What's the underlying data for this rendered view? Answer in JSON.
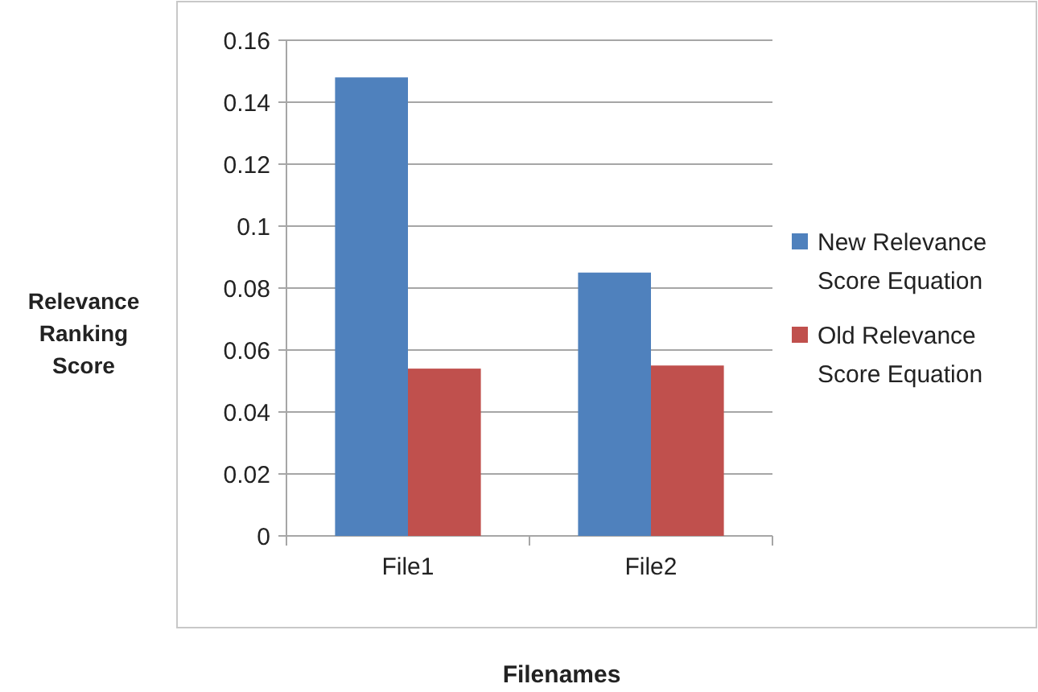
{
  "chart_data": {
    "type": "bar",
    "xlabel": "Filenames",
    "ylabel": "Relevance Ranking Score",
    "categories": [
      "File1",
      "File2"
    ],
    "series": [
      {
        "name": "New Relevance Score Equation",
        "color": "#4f81bd",
        "values": [
          0.148,
          0.085
        ]
      },
      {
        "name": "Old Relevance Score Equation",
        "color": "#c0504d",
        "values": [
          0.054,
          0.055
        ]
      }
    ],
    "ylim": [
      0,
      0.16
    ],
    "yticks": [
      0,
      0.02,
      0.04,
      0.06,
      0.08,
      0.1,
      0.12,
      0.14,
      0.16
    ],
    "grid": "y",
    "legend": "right"
  }
}
